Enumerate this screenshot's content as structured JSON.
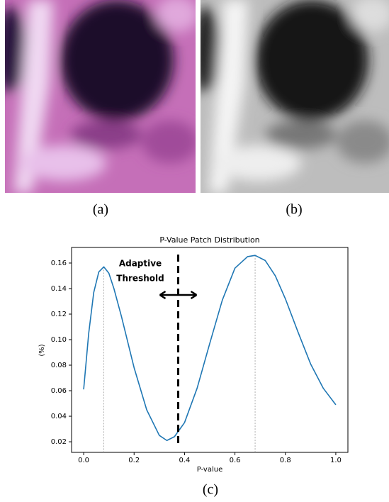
{
  "panels": {
    "a": "(a)",
    "b": "(b)",
    "c": "(c)"
  },
  "chart_data": {
    "type": "line",
    "title": "P-Value Patch Distribution",
    "x_label": "P-value",
    "y_label": "(%)",
    "x": [
      0,
      0.02,
      0.04,
      0.06,
      0.08,
      0.1,
      0.12,
      0.15,
      0.2,
      0.25,
      0.3,
      0.33,
      0.36,
      0.4,
      0.45,
      0.5,
      0.55,
      0.6,
      0.65,
      0.68,
      0.72,
      0.76,
      0.8,
      0.85,
      0.9,
      0.95,
      1.0
    ],
    "values": [
      0.061,
      0.105,
      0.137,
      0.153,
      0.157,
      0.152,
      0.14,
      0.118,
      0.078,
      0.045,
      0.025,
      0.021,
      0.024,
      0.035,
      0.062,
      0.097,
      0.131,
      0.156,
      0.165,
      0.166,
      0.162,
      0.15,
      0.132,
      0.106,
      0.081,
      0.062,
      0.049
    ],
    "color": "#1f77b4",
    "xlim": [
      -0.048,
      1.048
    ],
    "ylim": [
      0.0117,
      0.1722
    ],
    "xticks": [
      {
        "value": 0,
        "label": "0.0"
      },
      0.2,
      0.4,
      0.6,
      0.8,
      {
        "value": 1,
        "label": "1.0"
      }
    ],
    "yticks": [
      0.02,
      0.04,
      0.06,
      0.08,
      {
        "value": 0.1,
        "label": "0.10"
      },
      0.12,
      0.14,
      0.16
    ],
    "peaks": [
      0.08,
      0.68
    ],
    "threshold": 0.375,
    "annotation": [
      "Adaptive",
      "Threshold"
    ]
  }
}
